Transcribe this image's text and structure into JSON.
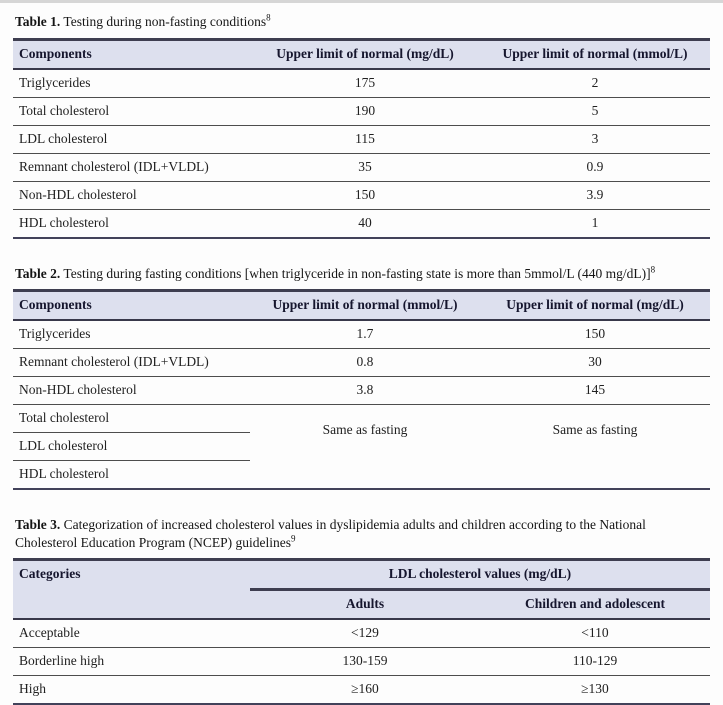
{
  "colors": {
    "header_bg": "#dde0ee",
    "header_text": "#16162e",
    "heavy_border": "#3e3e50",
    "row_border": "#4d4d4d",
    "body_text": "#212121"
  },
  "table1": {
    "title_label": "Table 1.",
    "title_text": " Testing during non-fasting conditions",
    "title_sup": "8",
    "columns": [
      "Components",
      "Upper limit of normal (mg/dL)",
      "Upper limit of normal (mmol/L)"
    ],
    "rows": [
      [
        "Triglycerides",
        "175",
        "2"
      ],
      [
        "Total cholesterol",
        "190",
        "5"
      ],
      [
        "LDL cholesterol",
        "115",
        "3"
      ],
      [
        "Remnant cholesterol (IDL+VLDL)",
        "35",
        "0.9"
      ],
      [
        "Non-HDL cholesterol",
        "150",
        "3.9"
      ],
      [
        "HDL cholesterol",
        "40",
        "1"
      ]
    ]
  },
  "table2": {
    "title_label": "Table 2.",
    "title_text": " Testing during fasting conditions [when triglyceride in non-fasting state is more than 5mmol/L (440 mg/dL)]",
    "title_sup": "8",
    "columns": [
      "Components",
      "Upper limit of normal (mmol/L)",
      "Upper limit of normal (mg/dL)"
    ],
    "rows": [
      [
        "Triglycerides",
        "1.7",
        "150"
      ],
      [
        "Remnant cholesterol (IDL+VLDL)",
        "0.8",
        "30"
      ],
      [
        "Non-HDL cholesterol",
        "3.8",
        "145"
      ]
    ],
    "merged_rows": [
      "Total cholesterol",
      "LDL cholesterol",
      "HDL cholesterol"
    ],
    "merged_values": [
      "Same as fasting",
      "Same as fasting"
    ]
  },
  "table3": {
    "title_label": "Table 3.",
    "title_text": " Categorization of increased cholesterol values in dyslipidemia adults and children according to the National Cholesterol Education Program (NCEP) guidelines",
    "title_sup": "9",
    "col1_header": "Categories",
    "group_header": "LDL cholesterol values (mg/dL)",
    "sub_headers": [
      "Adults",
      "Children and adolescent"
    ],
    "rows": [
      [
        "Acceptable",
        "<129",
        "<110"
      ],
      [
        "Borderline high",
        "130-159",
        "110-129"
      ],
      [
        "High",
        "≥160",
        "≥130"
      ]
    ]
  }
}
